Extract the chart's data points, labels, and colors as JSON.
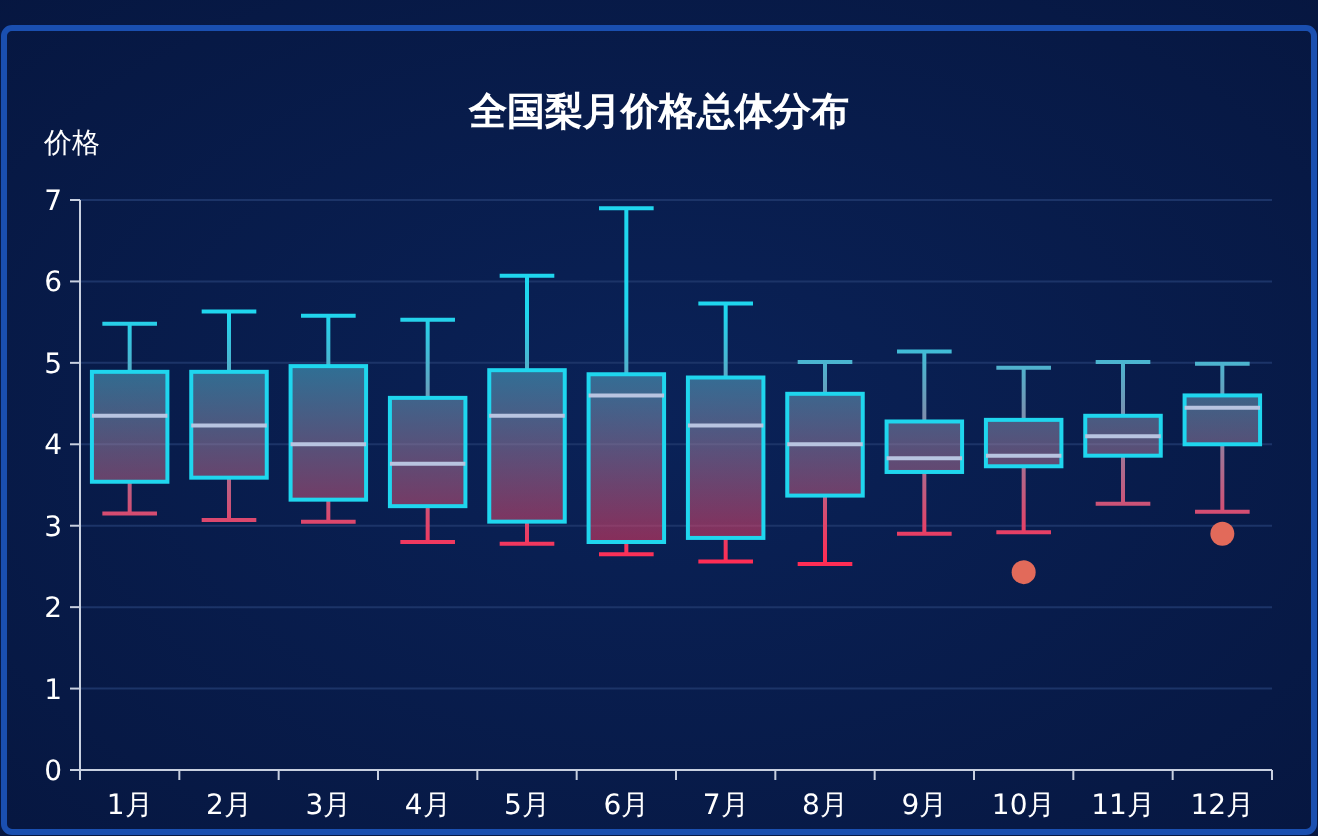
{
  "chart_data": {
    "type": "box",
    "title": "全国梨月价格总体分布",
    "ylabel": "价格",
    "categories": [
      "1月",
      "2月",
      "3月",
      "4月",
      "5月",
      "6月",
      "7月",
      "8月",
      "9月",
      "10月",
      "11月",
      "12月"
    ],
    "ylim": [
      0,
      7
    ],
    "yticks": [
      0,
      1,
      2,
      3,
      4,
      5,
      6,
      7
    ],
    "grid": "y",
    "series": [
      {
        "color": "#1fd6ee",
        "boxes": [
          {
            "low": 3.15,
            "q1": 3.54,
            "median": 4.35,
            "q3": 4.89,
            "high": 5.48
          },
          {
            "low": 3.07,
            "q1": 3.59,
            "median": 4.23,
            "q3": 4.89,
            "high": 5.63
          },
          {
            "low": 3.05,
            "q1": 3.32,
            "median": 4.0,
            "q3": 4.96,
            "high": 5.58
          },
          {
            "low": 2.8,
            "q1": 3.24,
            "median": 3.76,
            "q3": 4.57,
            "high": 5.53
          },
          {
            "low": 2.78,
            "q1": 3.05,
            "median": 4.35,
            "q3": 4.91,
            "high": 6.07
          },
          {
            "low": 2.65,
            "q1": 2.8,
            "median": 4.6,
            "q3": 4.86,
            "high": 6.9
          },
          {
            "low": 2.56,
            "q1": 2.85,
            "median": 4.23,
            "q3": 4.82,
            "high": 5.73
          },
          {
            "low": 2.53,
            "q1": 3.37,
            "median": 4.0,
            "q3": 4.62,
            "high": 5.01
          },
          {
            "low": 2.9,
            "q1": 3.66,
            "median": 3.83,
            "q3": 4.28,
            "high": 5.14
          },
          {
            "low": 2.92,
            "q1": 3.73,
            "median": 3.86,
            "q3": 4.3,
            "high": 4.94,
            "outliers": [
              2.43
            ]
          },
          {
            "low": 3.27,
            "q1": 3.86,
            "median": 4.1,
            "q3": 4.35,
            "high": 5.01
          },
          {
            "low": 3.17,
            "q1": 4.0,
            "median": 4.45,
            "q3": 4.6,
            "high": 4.99,
            "outliers": [
              2.9
            ]
          }
        ]
      }
    ]
  }
}
